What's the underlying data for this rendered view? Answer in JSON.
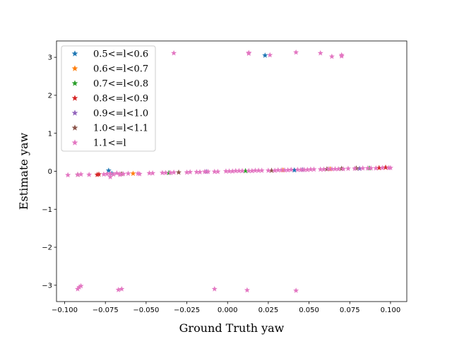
{
  "chart_data": {
    "type": "scatter",
    "xlabel": "Ground Truth yaw",
    "ylabel": "Estimate yaw",
    "xlim": [
      -0.105,
      0.11
    ],
    "ylim": [
      -3.43,
      3.43
    ],
    "xticks": [
      "−0.100",
      "−0.075",
      "−0.050",
      "−0.025",
      "0.000",
      "0.025",
      "0.050",
      "0.075",
      "0.100"
    ],
    "xtick_values": [
      -0.1,
      -0.075,
      -0.05,
      -0.025,
      0.0,
      0.025,
      0.05,
      0.075,
      0.1
    ],
    "yticks": [
      "−3",
      "−2",
      "−1",
      "0",
      "1",
      "2",
      "3"
    ],
    "ytick_values": [
      -3,
      -2,
      -1,
      0,
      1,
      2,
      3
    ],
    "grid": false,
    "legend_position": "top-left",
    "marker": "star",
    "series": [
      {
        "name": "0.5<=l<0.6",
        "color": "#1f77b4",
        "points": [
          [
            -0.073,
            0.02
          ],
          [
            -0.071,
            -0.06
          ],
          [
            0.023,
            3.05
          ],
          [
            0.041,
            0.03
          ]
        ]
      },
      {
        "name": "0.6<=l<0.7",
        "color": "#ff7f0e",
        "points": [
          [
            -0.058,
            -0.06
          ],
          [
            0.034,
            0.03
          ],
          [
            0.063,
            0.06
          ]
        ]
      },
      {
        "name": "0.7<=l<0.8",
        "color": "#2ca02c",
        "points": [
          [
            -0.036,
            -0.04
          ],
          [
            0.011,
            0.01
          ],
          [
            0.087,
            0.08
          ]
        ]
      },
      {
        "name": "0.8<=l<0.9",
        "color": "#d62728",
        "points": [
          [
            -0.079,
            -0.08
          ],
          [
            -0.08,
            -0.09
          ],
          [
            0.093,
            0.09
          ],
          [
            0.097,
            0.1
          ]
        ]
      },
      {
        "name": "0.9<=l<1.0",
        "color": "#9467bd",
        "points": [
          [
            -0.013,
            -0.01
          ],
          [
            0.046,
            0.04
          ],
          [
            0.081,
            0.07
          ]
        ]
      },
      {
        "name": "1.0<=l<1.1",
        "color": "#8c564b",
        "points": [
          [
            -0.092,
            -0.09
          ],
          [
            -0.065,
            -0.07
          ],
          [
            -0.03,
            -0.03
          ],
          [
            0.027,
            0.02
          ],
          [
            0.061,
            0.06
          ],
          [
            0.07,
            0.07
          ],
          [
            0.079,
            0.08
          ]
        ]
      },
      {
        "name": "1.1<=l",
        "color": "#e377c2",
        "points": [
          [
            -0.098,
            -0.1
          ],
          [
            -0.092,
            -0.09
          ],
          [
            -0.09,
            -0.08
          ],
          [
            -0.085,
            -0.09
          ],
          [
            -0.076,
            -0.08
          ],
          [
            -0.074,
            -0.07
          ],
          [
            -0.072,
            -0.06
          ],
          [
            -0.07,
            -0.08
          ],
          [
            -0.068,
            -0.05
          ],
          [
            -0.066,
            -0.07
          ],
          [
            -0.064,
            -0.07
          ],
          [
            -0.061,
            -0.06
          ],
          [
            -0.055,
            -0.06
          ],
          [
            -0.054,
            -0.07
          ],
          [
            -0.048,
            -0.05
          ],
          [
            -0.046,
            -0.05
          ],
          [
            -0.04,
            -0.04
          ],
          [
            -0.038,
            -0.04
          ],
          [
            -0.035,
            -0.04
          ],
          [
            -0.033,
            -0.03
          ],
          [
            -0.025,
            -0.03
          ],
          [
            -0.023,
            -0.02
          ],
          [
            -0.019,
            -0.02
          ],
          [
            -0.017,
            -0.02
          ],
          [
            -0.014,
            -0.01
          ],
          [
            -0.012,
            -0.01
          ],
          [
            -0.008,
            -0.01
          ],
          [
            -0.006,
            -0.01
          ],
          [
            -0.001,
            0.0
          ],
          [
            0.001,
            0.0
          ],
          [
            0.003,
            0.0
          ],
          [
            0.005,
            0.01
          ],
          [
            0.007,
            0.01
          ],
          [
            0.009,
            0.01
          ],
          [
            0.013,
            0.01
          ],
          [
            0.015,
            0.01
          ],
          [
            0.017,
            0.02
          ],
          [
            0.019,
            0.02
          ],
          [
            0.021,
            0.02
          ],
          [
            0.025,
            0.02
          ],
          [
            0.029,
            0.02
          ],
          [
            0.031,
            0.03
          ],
          [
            0.033,
            0.03
          ],
          [
            0.035,
            0.03
          ],
          [
            0.037,
            0.03
          ],
          [
            0.039,
            0.04
          ],
          [
            0.043,
            0.04
          ],
          [
            0.045,
            0.04
          ],
          [
            0.047,
            0.04
          ],
          [
            0.049,
            0.04
          ],
          [
            0.051,
            0.05
          ],
          [
            0.053,
            0.05
          ],
          [
            0.057,
            0.05
          ],
          [
            0.059,
            0.05
          ],
          [
            0.062,
            0.06
          ],
          [
            0.064,
            0.06
          ],
          [
            0.066,
            0.06
          ],
          [
            0.068,
            0.06
          ],
          [
            0.071,
            0.06
          ],
          [
            0.074,
            0.07
          ],
          [
            0.078,
            0.07
          ],
          [
            0.083,
            0.08
          ],
          [
            0.086,
            0.08
          ],
          [
            0.088,
            0.08
          ],
          [
            0.091,
            0.08
          ],
          [
            0.095,
            0.09
          ],
          [
            0.099,
            0.09
          ],
          [
            0.1,
            0.09
          ],
          [
            -0.072,
            -0.15
          ],
          [
            -0.066,
            -0.09
          ],
          [
            -0.033,
            3.11
          ],
          [
            0.013,
            3.1
          ],
          [
            0.013,
            3.12
          ],
          [
            0.026,
            3.06
          ],
          [
            0.042,
            3.13
          ],
          [
            0.057,
            3.11
          ],
          [
            0.064,
            3.02
          ],
          [
            0.07,
            3.03
          ],
          [
            0.07,
            3.06
          ],
          [
            -0.092,
            -3.1
          ],
          [
            -0.091,
            -3.05
          ],
          [
            -0.09,
            -3.02
          ],
          [
            -0.067,
            -3.12
          ],
          [
            -0.065,
            -3.1
          ],
          [
            -0.008,
            -3.1
          ],
          [
            0.012,
            -3.13
          ],
          [
            0.042,
            -3.14
          ]
        ]
      }
    ]
  }
}
